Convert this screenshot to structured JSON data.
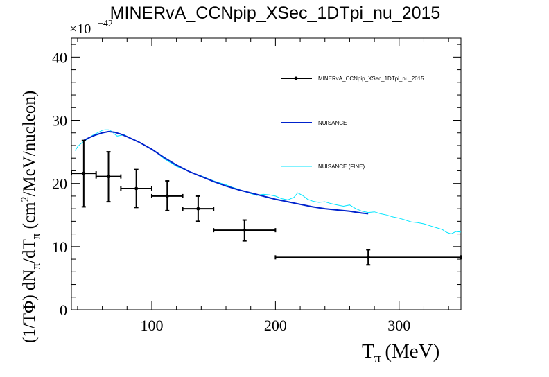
{
  "chart_data": {
    "type": "line",
    "title": "MINERvA_CCNpip_XSec_1DTpi_nu_2015",
    "xlabel_main": "T",
    "xlabel_sub": "π",
    "xlabel_unit": "(MeV)",
    "ylabel_parts": [
      "(1/TΦ) dN",
      "π",
      "/dT",
      "π",
      " (cm",
      "2",
      "/MeV/nucleon)"
    ],
    "y_exponent_base": "×10",
    "y_exponent_power": "−42",
    "xlim": [
      35,
      350
    ],
    "ylim": [
      0,
      43
    ],
    "xticks": [
      100,
      200,
      300
    ],
    "xtick_labels": [
      "100",
      "200",
      "300"
    ],
    "yticks": [
      0,
      10,
      20,
      30,
      40
    ],
    "ytick_labels": [
      "0",
      "10",
      "20",
      "30",
      "40"
    ],
    "grid": false,
    "legend_position": "top-right",
    "colors": {
      "data": "#000000",
      "nuisance": "#0022cc",
      "fine": "#00e5ff"
    },
    "series": [
      {
        "name": "MINERvA_CCNpip_XSec_1DTpi_nu_2015",
        "kind": "errorbar",
        "points": [
          {
            "x": 45,
            "xerr": 10,
            "y": 21.6,
            "yerr_low": 5.3,
            "yerr_high": 5.2
          },
          {
            "x": 65,
            "xerr": 10,
            "y": 21.1,
            "yerr_low": 4.0,
            "yerr_high": 3.9
          },
          {
            "x": 87.5,
            "xerr": 12.5,
            "y": 19.2,
            "yerr_low": 3.0,
            "yerr_high": 3.0
          },
          {
            "x": 112.5,
            "xerr": 12.5,
            "y": 18.0,
            "yerr_low": 2.3,
            "yerr_high": 2.4
          },
          {
            "x": 137.5,
            "xerr": 12.5,
            "y": 16.0,
            "yerr_low": 2.0,
            "yerr_high": 2.0
          },
          {
            "x": 175,
            "xerr": 25,
            "y": 12.6,
            "yerr_low": 1.7,
            "yerr_high": 1.6
          },
          {
            "x": 275,
            "xerr": 75,
            "y": 8.3,
            "yerr_low": 1.2,
            "yerr_high": 1.2
          }
        ]
      },
      {
        "name": "NUISANCE",
        "kind": "line",
        "x": [
          45,
          50,
          55,
          60,
          65,
          70,
          75,
          80,
          90,
          100,
          110,
          120,
          130,
          140,
          150,
          160,
          170,
          180,
          190,
          200,
          210,
          220,
          230,
          240,
          250,
          260,
          270,
          275
        ],
        "y": [
          26.8,
          27.3,
          27.7,
          28.0,
          28.2,
          28.1,
          27.8,
          27.4,
          26.5,
          25.4,
          24.1,
          22.9,
          21.9,
          21.1,
          20.3,
          19.6,
          19.0,
          18.5,
          18.0,
          17.5,
          17.1,
          16.7,
          16.3,
          16.0,
          15.8,
          15.6,
          15.3,
          15.2
        ]
      },
      {
        "name": "NUISANCE (FINE)",
        "kind": "line",
        "x": [
          38,
          40,
          42,
          44,
          46,
          48,
          50,
          52,
          55,
          58,
          60,
          62,
          65,
          68,
          70,
          72,
          75,
          78,
          80,
          85,
          90,
          95,
          100,
          105,
          110,
          115,
          120,
          125,
          130,
          135,
          140,
          145,
          150,
          155,
          160,
          165,
          170,
          175,
          180,
          185,
          190,
          195,
          200,
          205,
          210,
          215,
          218,
          222,
          226,
          230,
          235,
          240,
          245,
          250,
          255,
          260,
          265,
          270,
          275,
          280,
          285,
          290,
          295,
          300,
          305,
          310,
          315,
          320,
          325,
          330,
          335,
          338,
          342,
          346,
          350
        ],
        "y": [
          25.2,
          25.8,
          26.2,
          26.5,
          26.8,
          27.0,
          27.3,
          27.6,
          27.9,
          28.2,
          28.4,
          28.5,
          28.5,
          28.2,
          27.8,
          27.5,
          27.6,
          27.7,
          27.4,
          27.0,
          26.5,
          26.0,
          25.4,
          24.7,
          23.9,
          23.3,
          22.7,
          22.3,
          21.9,
          21.5,
          21.2,
          20.8,
          20.4,
          20.1,
          19.8,
          19.4,
          19.1,
          18.7,
          18.4,
          18.1,
          18.3,
          18.2,
          18.0,
          17.6,
          17.4,
          17.8,
          18.5,
          18.1,
          17.5,
          17.2,
          17.0,
          17.1,
          16.8,
          16.6,
          16.4,
          16.6,
          16.0,
          15.6,
          15.4,
          15.5,
          15.2,
          15.0,
          14.7,
          14.5,
          14.2,
          13.9,
          13.8,
          13.6,
          13.3,
          13.0,
          12.7,
          12.3,
          12.0,
          12.4,
          12.3
        ]
      }
    ]
  }
}
